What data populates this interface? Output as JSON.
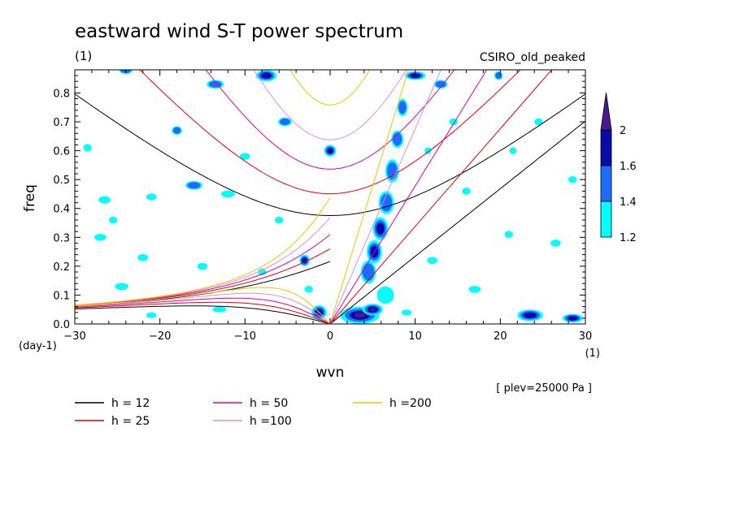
{
  "chart_data": {
    "type": "heatmap",
    "title": "eastward wind S-T power spectrum",
    "subtitle_left": "(1)",
    "subtitle_right": "CSIRO_old_peaked",
    "xlabel": "wvn",
    "xunit": "(1)",
    "ylabel": "freq",
    "yunit": "(day-1)",
    "annotation": "[ plev=25000 Pa ]",
    "xlim": [
      -30,
      30
    ],
    "ylim": [
      0,
      0.88
    ],
    "xticks": [
      -30,
      -20,
      -10,
      0,
      10,
      20,
      30
    ],
    "yticks": [
      0.0,
      0.1,
      0.2,
      0.3,
      0.4,
      0.5,
      0.6,
      0.7,
      0.8
    ],
    "colorbar": {
      "levels": [
        1.2,
        1.4,
        1.6,
        2
      ],
      "colors": [
        "#00ffff",
        "#1e6cff",
        "#0a0aa8",
        "#4a1a8c"
      ]
    },
    "dispersion_lines": [
      {
        "label": "h = 12",
        "h": 12,
        "color": "#000000"
      },
      {
        "label": "h = 25",
        "h": 25,
        "color": "#e00000"
      },
      {
        "label": "h = 50",
        "h": 50,
        "color": "#d000b0"
      },
      {
        "label": "h =100",
        "h": 100,
        "color": "#d890d8"
      },
      {
        "label": "h =200",
        "h": 200,
        "color": "#e8c800"
      }
    ],
    "patches": [
      {
        "x": 3.5,
        "y": 0.03,
        "rx": 2.3,
        "ry": 0.03,
        "level": 3
      },
      {
        "x": 5.0,
        "y": 0.05,
        "rx": 1.2,
        "ry": 0.02,
        "level": 3
      },
      {
        "x": -1.3,
        "y": 0.04,
        "rx": 0.9,
        "ry": 0.025,
        "level": 3
      },
      {
        "x": -3.0,
        "y": 0.22,
        "rx": 0.6,
        "ry": 0.02,
        "level": 2
      },
      {
        "x": 0.0,
        "y": 0.6,
        "rx": 0.7,
        "ry": 0.02,
        "level": 2
      },
      {
        "x": -7.5,
        "y": 0.86,
        "rx": 1.2,
        "ry": 0.02,
        "level": 2
      },
      {
        "x": 10.0,
        "y": 0.86,
        "rx": 1.2,
        "ry": 0.015,
        "level": 2
      },
      {
        "x": 5.2,
        "y": 0.25,
        "rx": 0.9,
        "ry": 0.04,
        "level": 2
      },
      {
        "x": 5.9,
        "y": 0.33,
        "rx": 0.9,
        "ry": 0.04,
        "level": 2
      },
      {
        "x": 6.6,
        "y": 0.42,
        "rx": 0.9,
        "ry": 0.04,
        "level": 1
      },
      {
        "x": 7.3,
        "y": 0.53,
        "rx": 0.8,
        "ry": 0.04,
        "level": 1
      },
      {
        "x": 7.9,
        "y": 0.64,
        "rx": 0.7,
        "ry": 0.03,
        "level": 1
      },
      {
        "x": 8.5,
        "y": 0.75,
        "rx": 0.6,
        "ry": 0.03,
        "level": 1
      },
      {
        "x": 4.5,
        "y": 0.18,
        "rx": 0.9,
        "ry": 0.04,
        "level": 1
      },
      {
        "x": 6.5,
        "y": 0.1,
        "rx": 1.0,
        "ry": 0.03,
        "level": 0
      },
      {
        "x": 23.5,
        "y": 0.03,
        "rx": 1.5,
        "ry": 0.02,
        "level": 2
      },
      {
        "x": 28.5,
        "y": 0.02,
        "rx": 1.2,
        "ry": 0.015,
        "level": 2
      },
      {
        "x": -16.0,
        "y": 0.48,
        "rx": 1.0,
        "ry": 0.015,
        "level": 1
      },
      {
        "x": -18.0,
        "y": 0.67,
        "rx": 0.6,
        "ry": 0.015,
        "level": 1
      },
      {
        "x": -5.3,
        "y": 0.7,
        "rx": 0.8,
        "ry": 0.015,
        "level": 1
      },
      {
        "x": -13.5,
        "y": 0.83,
        "rx": 1.0,
        "ry": 0.015,
        "level": 1
      },
      {
        "x": 13.0,
        "y": 0.83,
        "rx": 0.8,
        "ry": 0.015,
        "level": 1
      },
      {
        "x": -24.0,
        "y": 0.88,
        "rx": 0.8,
        "ry": 0.015,
        "level": 1
      },
      {
        "x": 19.8,
        "y": 0.86,
        "rx": 0.5,
        "ry": 0.015,
        "level": 1
      },
      {
        "x": -26.5,
        "y": 0.43,
        "rx": 0.7,
        "ry": 0.013,
        "level": 0
      },
      {
        "x": -28.5,
        "y": 0.61,
        "rx": 0.5,
        "ry": 0.013,
        "level": 0
      },
      {
        "x": -21.0,
        "y": 0.44,
        "rx": 0.6,
        "ry": 0.012,
        "level": 0
      },
      {
        "x": -12.0,
        "y": 0.45,
        "rx": 0.8,
        "ry": 0.012,
        "level": 0
      },
      {
        "x": -27.0,
        "y": 0.3,
        "rx": 0.7,
        "ry": 0.012,
        "level": 0
      },
      {
        "x": -22.0,
        "y": 0.23,
        "rx": 0.6,
        "ry": 0.012,
        "level": 0
      },
      {
        "x": -15.0,
        "y": 0.2,
        "rx": 0.6,
        "ry": 0.012,
        "level": 0
      },
      {
        "x": -8.0,
        "y": 0.18,
        "rx": 0.5,
        "ry": 0.012,
        "level": 0
      },
      {
        "x": -24.5,
        "y": 0.13,
        "rx": 0.8,
        "ry": 0.012,
        "level": 0
      },
      {
        "x": -13.0,
        "y": 0.05,
        "rx": 0.8,
        "ry": 0.01,
        "level": 0
      },
      {
        "x": -21.0,
        "y": 0.03,
        "rx": 0.6,
        "ry": 0.01,
        "level": 0
      },
      {
        "x": 16.0,
        "y": 0.46,
        "rx": 0.5,
        "ry": 0.012,
        "level": 0
      },
      {
        "x": 12.0,
        "y": 0.22,
        "rx": 0.6,
        "ry": 0.012,
        "level": 0
      },
      {
        "x": 17.0,
        "y": 0.12,
        "rx": 0.7,
        "ry": 0.012,
        "level": 0
      },
      {
        "x": 21.0,
        "y": 0.31,
        "rx": 0.5,
        "ry": 0.012,
        "level": 0
      },
      {
        "x": 26.5,
        "y": 0.28,
        "rx": 0.6,
        "ry": 0.012,
        "level": 0
      },
      {
        "x": 28.5,
        "y": 0.5,
        "rx": 0.5,
        "ry": 0.012,
        "level": 0
      },
      {
        "x": 24.5,
        "y": 0.7,
        "rx": 0.5,
        "ry": 0.012,
        "level": 0
      },
      {
        "x": 14.5,
        "y": 0.7,
        "rx": 0.5,
        "ry": 0.012,
        "level": 0
      },
      {
        "x": -10.0,
        "y": 0.58,
        "rx": 0.6,
        "ry": 0.012,
        "level": 0
      },
      {
        "x": -2.5,
        "y": 0.12,
        "rx": 0.5,
        "ry": 0.012,
        "level": 0
      },
      {
        "x": -6.0,
        "y": 0.36,
        "rx": 0.5,
        "ry": 0.012,
        "level": 0
      },
      {
        "x": -25.5,
        "y": 0.36,
        "rx": 0.5,
        "ry": 0.012,
        "level": 0
      },
      {
        "x": 11.5,
        "y": 0.6,
        "rx": 0.4,
        "ry": 0.012,
        "level": 0
      },
      {
        "x": 21.5,
        "y": 0.6,
        "rx": 0.4,
        "ry": 0.012,
        "level": 0
      },
      {
        "x": 9.0,
        "y": 0.04,
        "rx": 0.6,
        "ry": 0.01,
        "level": 0
      }
    ]
  }
}
